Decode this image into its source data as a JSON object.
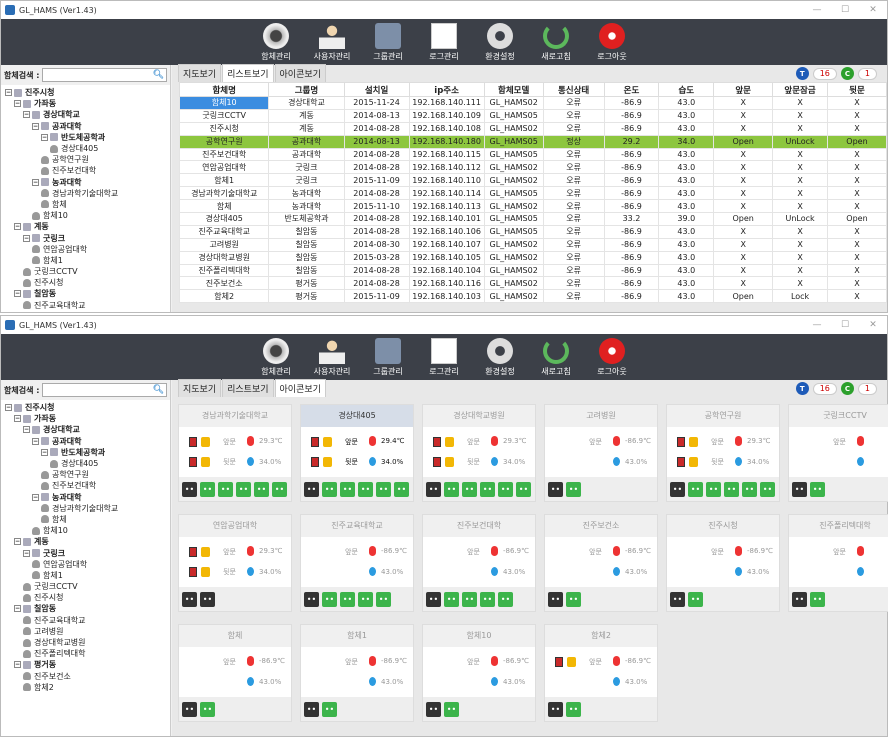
{
  "app": {
    "title": "GL_HAMS (Ver1.43)"
  },
  "toolbar": {
    "items": [
      "함체관리",
      "사용자관리",
      "그룹관리",
      "로그관리",
      "환경설정",
      "새로고침",
      "로그아웃"
    ]
  },
  "search": {
    "label": "함체검색 :"
  },
  "tabs": [
    "지도보기",
    "리스트보기",
    "아이콘보기"
  ],
  "badges": {
    "t_label": "T",
    "t_count": "16",
    "c_label": "C",
    "c_count": "1"
  },
  "tree1": [
    {
      "t": "진주시청",
      "l": 0,
      "b": true,
      "k": "f"
    },
    {
      "t": "가좌동",
      "l": 1,
      "b": true,
      "k": "f"
    },
    {
      "t": "경상대학교",
      "l": 2,
      "b": true,
      "k": "f"
    },
    {
      "t": "공과대학",
      "l": 3,
      "b": true,
      "k": "f"
    },
    {
      "t": "반도체공학과",
      "l": 4,
      "b": true,
      "k": "f"
    },
    {
      "t": "경상대405",
      "l": 5,
      "b": false,
      "k": "p"
    },
    {
      "t": "공학연구원",
      "l": 4,
      "b": false,
      "k": "p"
    },
    {
      "t": "진주보건대학",
      "l": 4,
      "b": false,
      "k": "p"
    },
    {
      "t": "농과대학",
      "l": 3,
      "b": true,
      "k": "f"
    },
    {
      "t": "경남과학기술대학교",
      "l": 4,
      "b": false,
      "k": "p"
    },
    {
      "t": "함체",
      "l": 4,
      "b": false,
      "k": "p"
    },
    {
      "t": "함체10",
      "l": 3,
      "b": false,
      "k": "p"
    },
    {
      "t": "계동",
      "l": 1,
      "b": true,
      "k": "f"
    },
    {
      "t": "굿링크",
      "l": 2,
      "b": true,
      "k": "f"
    },
    {
      "t": "연암공업대학",
      "l": 3,
      "b": false,
      "k": "p"
    },
    {
      "t": "함체1",
      "l": 3,
      "b": false,
      "k": "p"
    },
    {
      "t": "굿링크CCTV",
      "l": 2,
      "b": false,
      "k": "p"
    },
    {
      "t": "진주시청",
      "l": 2,
      "b": false,
      "k": "p"
    },
    {
      "t": "칠암동",
      "l": 1,
      "b": true,
      "k": "f"
    },
    {
      "t": "진주교육대학교",
      "l": 2,
      "b": false,
      "k": "p"
    }
  ],
  "tree2": [
    {
      "t": "진주시청",
      "l": 0,
      "b": true,
      "k": "f"
    },
    {
      "t": "가좌동",
      "l": 1,
      "b": true,
      "k": "f"
    },
    {
      "t": "경상대학교",
      "l": 2,
      "b": true,
      "k": "f"
    },
    {
      "t": "공과대학",
      "l": 3,
      "b": true,
      "k": "f"
    },
    {
      "t": "반도체공학과",
      "l": 4,
      "b": true,
      "k": "f"
    },
    {
      "t": "경상대405",
      "l": 5,
      "b": false,
      "k": "p"
    },
    {
      "t": "공학연구원",
      "l": 4,
      "b": false,
      "k": "p"
    },
    {
      "t": "진주보건대학",
      "l": 4,
      "b": false,
      "k": "p"
    },
    {
      "t": "농과대학",
      "l": 3,
      "b": true,
      "k": "f"
    },
    {
      "t": "경남과학기술대학교",
      "l": 4,
      "b": false,
      "k": "p"
    },
    {
      "t": "함체",
      "l": 4,
      "b": false,
      "k": "p"
    },
    {
      "t": "함체10",
      "l": 3,
      "b": false,
      "k": "p"
    },
    {
      "t": "계동",
      "l": 1,
      "b": true,
      "k": "f"
    },
    {
      "t": "굿링크",
      "l": 2,
      "b": true,
      "k": "f"
    },
    {
      "t": "연암공업대학",
      "l": 3,
      "b": false,
      "k": "p"
    },
    {
      "t": "함체1",
      "l": 3,
      "b": false,
      "k": "p"
    },
    {
      "t": "굿링크CCTV",
      "l": 2,
      "b": false,
      "k": "p"
    },
    {
      "t": "진주시청",
      "l": 2,
      "b": false,
      "k": "p"
    },
    {
      "t": "칠암동",
      "l": 1,
      "b": true,
      "k": "f"
    },
    {
      "t": "진주교육대학교",
      "l": 2,
      "b": false,
      "k": "p"
    },
    {
      "t": "고려병원",
      "l": 2,
      "b": false,
      "k": "p"
    },
    {
      "t": "경상대학교병원",
      "l": 2,
      "b": false,
      "k": "p"
    },
    {
      "t": "진주폴리텍대학",
      "l": 2,
      "b": false,
      "k": "p"
    },
    {
      "t": "평거동",
      "l": 1,
      "b": true,
      "k": "f"
    },
    {
      "t": "진주보건소",
      "l": 2,
      "b": false,
      "k": "p"
    },
    {
      "t": "함체2",
      "l": 2,
      "b": false,
      "k": "p"
    }
  ],
  "table": {
    "headers": [
      "함체명",
      "그룹명",
      "설치일",
      "ip주소",
      "함체모델",
      "통신상태",
      "온도",
      "습도",
      "앞문",
      "앞문잠금",
      "뒷문"
    ],
    "rows": [
      [
        "함체10",
        "경상대학교",
        "2015-11-24",
        "192.168.140.111",
        "GL_HAMS02",
        "오류",
        "-86.9",
        "43.0",
        "X",
        "X",
        "X"
      ],
      [
        "굿링크CCTV",
        "계동",
        "2014-08-13",
        "192.168.140.109",
        "GL_HAMS05",
        "오류",
        "-86.9",
        "43.0",
        "X",
        "X",
        "X"
      ],
      [
        "진주시청",
        "계동",
        "2014-08-28",
        "192.168.140.108",
        "GL_HAMS02",
        "오류",
        "-86.9",
        "43.0",
        "X",
        "X",
        "X"
      ],
      [
        "공학연구원",
        "공과대학",
        "2014-08-13",
        "192.168.140.180",
        "GL_HAMS05",
        "정상",
        "29.2",
        "34.0",
        "Open",
        "UnLock",
        "Open"
      ],
      [
        "진주보건대학",
        "공과대학",
        "2014-08-28",
        "192.168.140.115",
        "GL_HAMS05",
        "오류",
        "-86.9",
        "43.0",
        "X",
        "X",
        "X"
      ],
      [
        "연암공업대학",
        "굿링크",
        "2014-08-28",
        "192.168.140.112",
        "GL_HAMS02",
        "오류",
        "-86.9",
        "43.0",
        "X",
        "X",
        "X"
      ],
      [
        "함체1",
        "굿링크",
        "2015-11-09",
        "192.168.140.110",
        "GL_HAMS02",
        "오류",
        "-86.9",
        "43.0",
        "X",
        "X",
        "X"
      ],
      [
        "경남과학기술대학교",
        "농과대학",
        "2014-08-28",
        "192.168.140.114",
        "GL_HAMS05",
        "오류",
        "-86.9",
        "43.0",
        "X",
        "X",
        "X"
      ],
      [
        "함체",
        "농과대학",
        "2015-11-10",
        "192.168.140.113",
        "GL_HAMS02",
        "오류",
        "-86.9",
        "43.0",
        "X",
        "X",
        "X"
      ],
      [
        "경상대405",
        "반도체공학과",
        "2014-08-28",
        "192.168.140.101",
        "GL_HAMS05",
        "오류",
        "33.2",
        "39.0",
        "Open",
        "UnLock",
        "Open"
      ],
      [
        "진주교육대학교",
        "칠암동",
        "2014-08-28",
        "192.168.140.106",
        "GL_HAMS05",
        "오류",
        "-86.9",
        "43.0",
        "X",
        "X",
        "X"
      ],
      [
        "고려병원",
        "칠암동",
        "2014-08-30",
        "192.168.140.107",
        "GL_HAMS02",
        "오류",
        "-86.9",
        "43.0",
        "X",
        "X",
        "X"
      ],
      [
        "경상대학교병원",
        "칠암동",
        "2015-03-28",
        "192.168.140.105",
        "GL_HAMS02",
        "오류",
        "-86.9",
        "43.0",
        "X",
        "X",
        "X"
      ],
      [
        "진주폴리텍대학",
        "칠암동",
        "2014-08-28",
        "192.168.140.104",
        "GL_HAMS02",
        "오류",
        "-86.9",
        "43.0",
        "X",
        "X",
        "X"
      ],
      [
        "진주보건소",
        "평거동",
        "2014-08-28",
        "192.168.140.116",
        "GL_HAMS02",
        "오류",
        "-86.9",
        "43.0",
        "X",
        "X",
        "X"
      ],
      [
        "함체2",
        "평거동",
        "2015-11-09",
        "192.168.140.103",
        "GL_HAMS02",
        "오류",
        "-86.9",
        "43.0",
        "Open",
        "Lock",
        "X"
      ]
    ]
  },
  "card_labels": {
    "front": "앞문",
    "back": "뒷문"
  },
  "cards": [
    {
      "name": "경남과학기술대학교",
      "doors": true,
      "front_t": "29.3℃",
      "back_h": "34.0%",
      "sq": "kggggg",
      "sel": false,
      "dark": false
    },
    {
      "name": "경상대405",
      "doors": true,
      "front_t": "29.4℃",
      "back_h": "34.0%",
      "sq": "kggggg",
      "sel": true,
      "dark": true
    },
    {
      "name": "경상대학교병원",
      "doors": true,
      "front_t": "29.3℃",
      "back_h": "34.0%",
      "sq": "kggggg",
      "sel": false,
      "dark": false
    },
    {
      "name": "고려병원",
      "doors": false,
      "front_t": "-86.9℃",
      "back_h": "43.0%",
      "sq": "kg",
      "sel": false,
      "dark": false
    },
    {
      "name": "공학연구원",
      "doors": true,
      "front_t": "29.3℃",
      "back_h": "34.0%",
      "sq": "kggggg",
      "sel": false,
      "dark": false
    },
    {
      "name": "굿링크CCTV",
      "doors": false,
      "front_t": "",
      "back_h": "",
      "sq": "kg",
      "sel": false,
      "dark": false
    },
    {
      "name": "연암공업대학",
      "doors": true,
      "front_t": "29.3℃",
      "back_h": "34.0%",
      "sq": "kk",
      "sel": false,
      "dark": false
    },
    {
      "name": "진주교육대학교",
      "doors": false,
      "front_t": "-86.9℃",
      "back_h": "43.0%",
      "sq": "kgggg",
      "sel": false,
      "dark": false
    },
    {
      "name": "진주보건대학",
      "doors": false,
      "front_t": "-86.9℃",
      "back_h": "43.0%",
      "sq": "kgggg",
      "sel": false,
      "dark": false
    },
    {
      "name": "진주보건소",
      "doors": false,
      "front_t": "-86.9℃",
      "back_h": "43.0%",
      "sq": "kg",
      "sel": false,
      "dark": false
    },
    {
      "name": "진주시청",
      "doors": false,
      "front_t": "-86.9℃",
      "back_h": "43.0%",
      "sq": "kg",
      "sel": false,
      "dark": false
    },
    {
      "name": "진주폴리텍대학",
      "doors": false,
      "front_t": "",
      "back_h": "",
      "sq": "kg",
      "sel": false,
      "dark": false
    },
    {
      "name": "함체",
      "doors": false,
      "front_t": "-86.9℃",
      "back_h": "43.0%",
      "sq": "kg",
      "sel": false,
      "dark": false
    },
    {
      "name": "함체1",
      "doors": false,
      "front_t": "-86.9℃",
      "back_h": "43.0%",
      "sq": "kg",
      "sel": false,
      "dark": false
    },
    {
      "name": "함체10",
      "doors": false,
      "front_t": "-86.9℃",
      "back_h": "43.0%",
      "sq": "kg",
      "sel": false,
      "dark": false
    },
    {
      "name": "함체2",
      "doors": "front",
      "front_t": "-86.9℃",
      "back_h": "43.0%",
      "sq": "kg",
      "sel": false,
      "dark": false
    }
  ],
  "colors": {
    "toolbar": "#3c4048",
    "selected_row": "#8dc63f",
    "t_badge": "#1e5bb8",
    "c_badge": "#2ca02c"
  }
}
